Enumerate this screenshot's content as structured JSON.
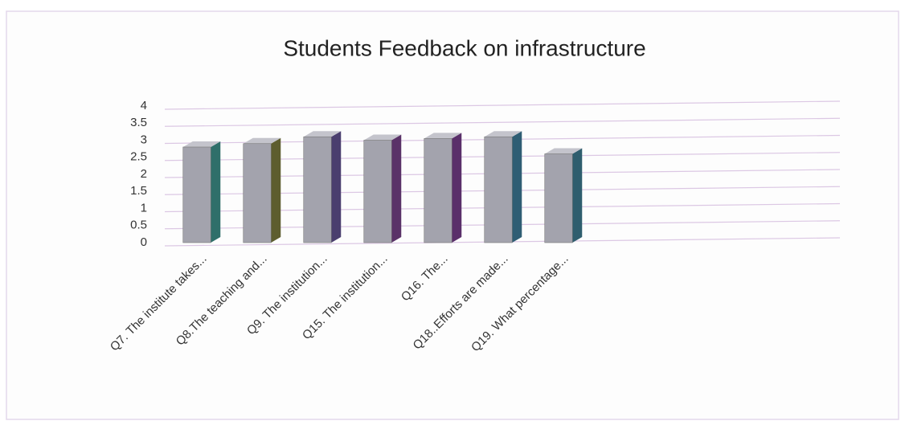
{
  "chart_data": {
    "type": "bar3d",
    "title": "Students Feedback on infrastructure",
    "categories": [
      "Q7. The institute takes...",
      "Q8.The teaching and...",
      "Q9. The institution...",
      "Q15. The institution...",
      "Q16. The...",
      "Q18..Efforts are made...",
      "Q19. What percentage..."
    ],
    "values": [
      2.8,
      2.9,
      3.1,
      3.0,
      3.05,
      3.1,
      2.6
    ],
    "color": "#a3a3ad",
    "ylim": [
      0,
      4
    ],
    "yticks": [
      0,
      0.5,
      1,
      1.5,
      2,
      2.5,
      3,
      3.5,
      4
    ],
    "grid": true
  }
}
